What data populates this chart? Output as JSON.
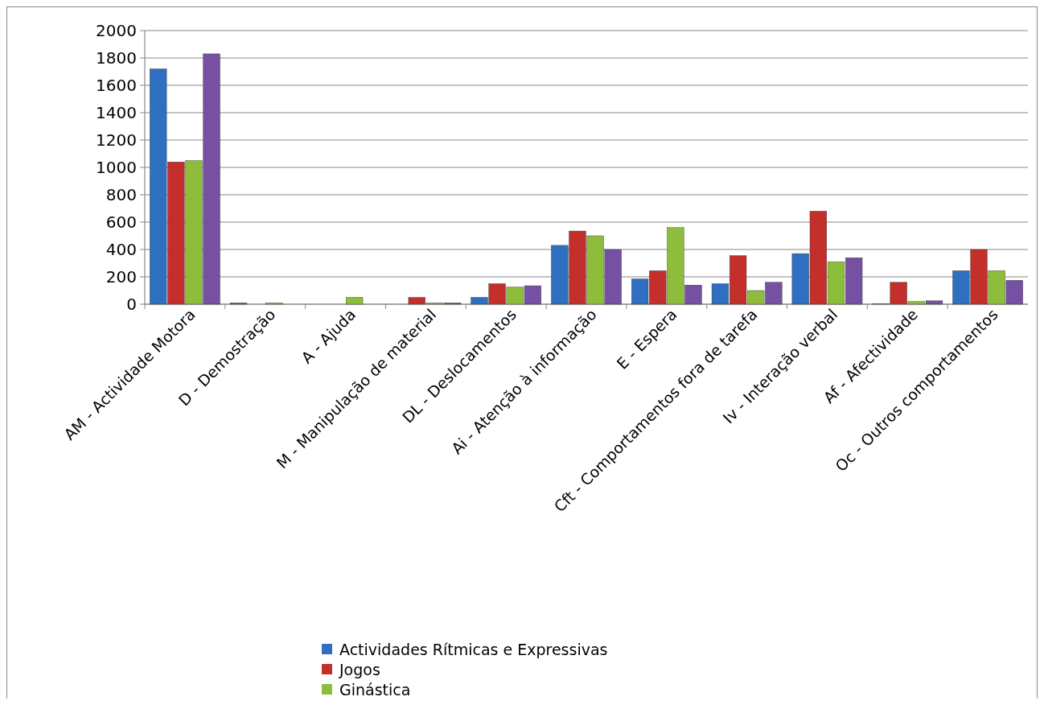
{
  "chart_data": {
    "type": "bar",
    "categories": [
      "AM - Actividade Motora",
      "D - Demostração",
      "A - Ajuda",
      "M - Manipulação de material",
      "DL - Deslocamentos",
      "Ai - Atenção à informação",
      "E - Espera",
      "Cft - Comportamentos fora de tarefa",
      "Iv - Interação verbal",
      "Af - Afectividade",
      "Oc - Outros comportamentos"
    ],
    "series": [
      {
        "name": "Actividades Rítmicas e Expressivas",
        "color": "#2f6fc1",
        "values": [
          1720,
          10,
          0,
          0,
          50,
          430,
          185,
          150,
          370,
          2,
          245
        ]
      },
      {
        "name": "Jogos",
        "color": "#c3302c",
        "values": [
          1040,
          0,
          0,
          50,
          150,
          535,
          245,
          355,
          680,
          160,
          400
        ]
      },
      {
        "name": "Ginástica",
        "color": "#8dbd3a",
        "values": [
          1050,
          10,
          50,
          10,
          125,
          500,
          560,
          100,
          310,
          20,
          245
        ]
      },
      {
        "color": "#7650a2",
        "values": [
          1830,
          0,
          0,
          10,
          135,
          400,
          140,
          160,
          340,
          25,
          175
        ]
      }
    ],
    "ylim": [
      0,
      2000
    ],
    "yticks": [
      0,
      200,
      400,
      600,
      800,
      1000,
      1200,
      1400,
      1600,
      1800,
      2000
    ],
    "grid": "y",
    "legend": "bottom"
  }
}
